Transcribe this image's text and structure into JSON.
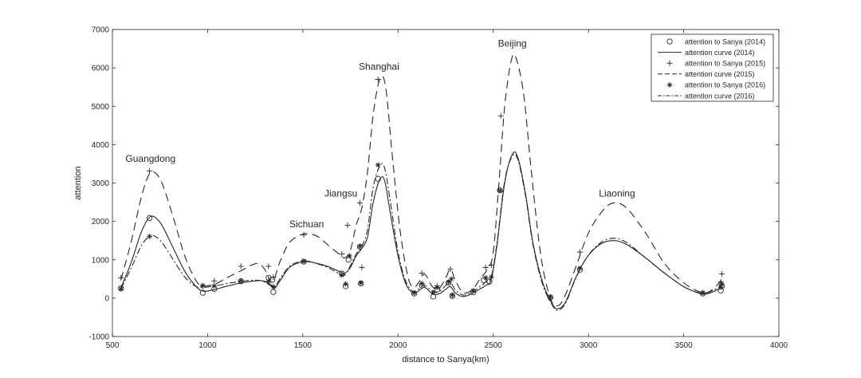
{
  "chart_data": {
    "type": "scatter",
    "title": "",
    "xlabel": "distance to Sanya(km)",
    "ylabel": "attention",
    "xlim": [
      500,
      4000
    ],
    "ylim": [
      -1000,
      7000
    ],
    "xticks": [
      500,
      1000,
      1500,
      2000,
      2500,
      3000,
      3500,
      4000
    ],
    "yticks": [
      -1000,
      0,
      1000,
      2000,
      3000,
      4000,
      5000,
      6000,
      7000
    ],
    "grid": false,
    "legend_position": "top-right",
    "colors": {
      "line": "#262626",
      "axis": "#262626",
      "background": "#ffffff"
    },
    "annotations": [
      {
        "text": "Guangdong",
        "x": 700,
        "y": 3550
      },
      {
        "text": "Sichuan",
        "x": 1520,
        "y": 1850
      },
      {
        "text": "Jiangsu",
        "x": 1700,
        "y": 2650
      },
      {
        "text": "Shanghai",
        "x": 1900,
        "y": 5950
      },
      {
        "text": "Beijing",
        "x": 2600,
        "y": 6550
      },
      {
        "text": "Liaoning",
        "x": 3150,
        "y": 2650
      }
    ],
    "series": [
      {
        "name": "attention to Sanya (2014)",
        "kind": "scatter",
        "marker": "circle",
        "points": [
          [
            545,
            260
          ],
          [
            695,
            2090
          ],
          [
            975,
            140
          ],
          [
            1035,
            240
          ],
          [
            1175,
            440
          ],
          [
            1320,
            530
          ],
          [
            1340,
            480
          ],
          [
            1345,
            160
          ],
          [
            1505,
            950
          ],
          [
            1705,
            640
          ],
          [
            1725,
            310
          ],
          [
            1740,
            1000
          ],
          [
            1800,
            1340
          ],
          [
            1805,
            380
          ],
          [
            1895,
            3110
          ],
          [
            2085,
            120
          ],
          [
            2125,
            330
          ],
          [
            2185,
            40
          ],
          [
            2205,
            220
          ],
          [
            2265,
            400
          ],
          [
            2285,
            60
          ],
          [
            2395,
            150
          ],
          [
            2450,
            470
          ],
          [
            2480,
            430
          ],
          [
            2535,
            2810
          ],
          [
            2800,
            20
          ],
          [
            2955,
            740
          ],
          [
            3600,
            120
          ],
          [
            3695,
            200
          ],
          [
            3700,
            310
          ]
        ]
      },
      {
        "name": "attention curve (2014)",
        "kind": "line",
        "dash": "",
        "points": [
          [
            545,
            270
          ],
          [
            600,
            950
          ],
          [
            650,
            1700
          ],
          [
            690,
            2080
          ],
          [
            720,
            2120
          ],
          [
            760,
            1900
          ],
          [
            820,
            1300
          ],
          [
            880,
            700
          ],
          [
            940,
            300
          ],
          [
            980,
            180
          ],
          [
            1040,
            230
          ],
          [
            1100,
            310
          ],
          [
            1180,
            400
          ],
          [
            1250,
            450
          ],
          [
            1290,
            450
          ],
          [
            1330,
            360
          ],
          [
            1350,
            250
          ],
          [
            1380,
            450
          ],
          [
            1430,
            800
          ],
          [
            1490,
            940
          ],
          [
            1530,
            950
          ],
          [
            1580,
            900
          ],
          [
            1640,
            810
          ],
          [
            1690,
            700
          ],
          [
            1720,
            650
          ],
          [
            1750,
            800
          ],
          [
            1780,
            1100
          ],
          [
            1810,
            1300
          ],
          [
            1840,
            1600
          ],
          [
            1870,
            2500
          ],
          [
            1905,
            3100
          ],
          [
            1930,
            3050
          ],
          [
            1960,
            2200
          ],
          [
            2000,
            1100
          ],
          [
            2040,
            380
          ],
          [
            2080,
            130
          ],
          [
            2110,
            200
          ],
          [
            2140,
            280
          ],
          [
            2180,
            120
          ],
          [
            2215,
            110
          ],
          [
            2250,
            230
          ],
          [
            2275,
            300
          ],
          [
            2300,
            140
          ],
          [
            2340,
            40
          ],
          [
            2390,
            120
          ],
          [
            2430,
            240
          ],
          [
            2460,
            330
          ],
          [
            2490,
            500
          ],
          [
            2520,
            1400
          ],
          [
            2560,
            3000
          ],
          [
            2600,
            3750
          ],
          [
            2630,
            3650
          ],
          [
            2670,
            2700
          ],
          [
            2710,
            1400
          ],
          [
            2760,
            400
          ],
          [
            2810,
            -150
          ],
          [
            2840,
            -280
          ],
          [
            2880,
            -100
          ],
          [
            2930,
            500
          ],
          [
            2990,
            1050
          ],
          [
            3060,
            1400
          ],
          [
            3130,
            1500
          ],
          [
            3200,
            1400
          ],
          [
            3300,
            1050
          ],
          [
            3400,
            650
          ],
          [
            3500,
            300
          ],
          [
            3580,
            130
          ],
          [
            3620,
            110
          ],
          [
            3660,
            180
          ],
          [
            3700,
            290
          ]
        ]
      },
      {
        "name": "attention to Sanya (2015)",
        "kind": "scatter",
        "marker": "plus",
        "points": [
          [
            545,
            530
          ],
          [
            695,
            3310
          ],
          [
            975,
            310
          ],
          [
            1035,
            450
          ],
          [
            1175,
            830
          ],
          [
            1320,
            830
          ],
          [
            1345,
            550
          ],
          [
            1505,
            1650
          ],
          [
            1705,
            1150
          ],
          [
            1735,
            1900
          ],
          [
            1800,
            2480
          ],
          [
            1810,
            800
          ],
          [
            1895,
            5700
          ],
          [
            2125,
            650
          ],
          [
            2205,
            320
          ],
          [
            2275,
            760
          ],
          [
            2460,
            800
          ],
          [
            2490,
            860
          ],
          [
            2540,
            4750
          ],
          [
            2955,
            1200
          ],
          [
            3700,
            630
          ],
          [
            3695,
            420
          ]
        ]
      },
      {
        "name": "attention curve (2015)",
        "kind": "line",
        "dash": "10,6",
        "points": [
          [
            545,
            480
          ],
          [
            600,
            1500
          ],
          [
            650,
            2600
          ],
          [
            690,
            3200
          ],
          [
            720,
            3280
          ],
          [
            760,
            3000
          ],
          [
            820,
            2100
          ],
          [
            880,
            1100
          ],
          [
            940,
            450
          ],
          [
            980,
            320
          ],
          [
            1040,
            370
          ],
          [
            1100,
            530
          ],
          [
            1170,
            700
          ],
          [
            1230,
            860
          ],
          [
            1270,
            900
          ],
          [
            1300,
            750
          ],
          [
            1340,
            420
          ],
          [
            1380,
            950
          ],
          [
            1430,
            1450
          ],
          [
            1490,
            1650
          ],
          [
            1530,
            1680
          ],
          [
            1580,
            1600
          ],
          [
            1640,
            1350
          ],
          [
            1690,
            1150
          ],
          [
            1720,
            1050
          ],
          [
            1750,
            1250
          ],
          [
            1780,
            1900
          ],
          [
            1810,
            2350
          ],
          [
            1840,
            3300
          ],
          [
            1870,
            4800
          ],
          [
            1905,
            5720
          ],
          [
            1935,
            5500
          ],
          [
            1970,
            3700
          ],
          [
            2010,
            1800
          ],
          [
            2050,
            600
          ],
          [
            2080,
            280
          ],
          [
            2110,
            420
          ],
          [
            2140,
            620
          ],
          [
            2180,
            300
          ],
          [
            2215,
            250
          ],
          [
            2250,
            520
          ],
          [
            2275,
            760
          ],
          [
            2300,
            480
          ],
          [
            2340,
            150
          ],
          [
            2390,
            220
          ],
          [
            2430,
            500
          ],
          [
            2470,
            760
          ],
          [
            2500,
            1200
          ],
          [
            2530,
            3000
          ],
          [
            2560,
            5000
          ],
          [
            2595,
            6200
          ],
          [
            2620,
            6250
          ],
          [
            2660,
            5300
          ],
          [
            2700,
            3300
          ],
          [
            2750,
            1100
          ],
          [
            2800,
            0
          ],
          [
            2840,
            -200
          ],
          [
            2880,
            100
          ],
          [
            2940,
            900
          ],
          [
            3000,
            1700
          ],
          [
            3070,
            2250
          ],
          [
            3130,
            2480
          ],
          [
            3200,
            2350
          ],
          [
            3300,
            1700
          ],
          [
            3400,
            900
          ],
          [
            3500,
            400
          ],
          [
            3580,
            170
          ],
          [
            3620,
            140
          ],
          [
            3660,
            260
          ],
          [
            3700,
            480
          ]
        ]
      },
      {
        "name": "attention to Sanya (2016)",
        "kind": "scatter",
        "marker": "star",
        "points": [
          [
            545,
            240
          ],
          [
            695,
            1610
          ],
          [
            975,
            330
          ],
          [
            1035,
            320
          ],
          [
            1175,
            450
          ],
          [
            1320,
            440
          ],
          [
            1345,
            300
          ],
          [
            1505,
            960
          ],
          [
            1705,
            600
          ],
          [
            1725,
            370
          ],
          [
            1745,
            1100
          ],
          [
            1800,
            1350
          ],
          [
            1805,
            400
          ],
          [
            1895,
            3470
          ],
          [
            2085,
            140
          ],
          [
            2125,
            380
          ],
          [
            2185,
            150
          ],
          [
            2205,
            280
          ],
          [
            2265,
            420
          ],
          [
            2280,
            500
          ],
          [
            2285,
            80
          ],
          [
            2395,
            200
          ],
          [
            2460,
            530
          ],
          [
            2490,
            550
          ],
          [
            2535,
            2800
          ],
          [
            2800,
            30
          ],
          [
            2955,
            780
          ],
          [
            3600,
            140
          ],
          [
            3700,
            370
          ],
          [
            3695,
            280
          ]
        ]
      },
      {
        "name": "attention curve (2016)",
        "kind": "line",
        "dash": "8,3,2,3",
        "points": [
          [
            545,
            250
          ],
          [
            600,
            800
          ],
          [
            650,
            1350
          ],
          [
            690,
            1600
          ],
          [
            720,
            1620
          ],
          [
            760,
            1450
          ],
          [
            820,
            1000
          ],
          [
            880,
            550
          ],
          [
            940,
            300
          ],
          [
            980,
            280
          ],
          [
            1040,
            320
          ],
          [
            1100,
            380
          ],
          [
            1180,
            440
          ],
          [
            1250,
            470
          ],
          [
            1290,
            440
          ],
          [
            1330,
            330
          ],
          [
            1350,
            280
          ],
          [
            1380,
            500
          ],
          [
            1430,
            830
          ],
          [
            1490,
            960
          ],
          [
            1530,
            960
          ],
          [
            1580,
            890
          ],
          [
            1640,
            780
          ],
          [
            1690,
            640
          ],
          [
            1720,
            600
          ],
          [
            1750,
            850
          ],
          [
            1780,
            1150
          ],
          [
            1810,
            1350
          ],
          [
            1840,
            1800
          ],
          [
            1870,
            2900
          ],
          [
            1905,
            3450
          ],
          [
            1930,
            3380
          ],
          [
            1960,
            2500
          ],
          [
            2000,
            1200
          ],
          [
            2040,
            450
          ],
          [
            2080,
            170
          ],
          [
            2110,
            250
          ],
          [
            2140,
            330
          ],
          [
            2180,
            190
          ],
          [
            2215,
            170
          ],
          [
            2250,
            330
          ],
          [
            2275,
            420
          ],
          [
            2300,
            220
          ],
          [
            2340,
            80
          ],
          [
            2390,
            160
          ],
          [
            2430,
            300
          ],
          [
            2460,
            420
          ],
          [
            2490,
            560
          ],
          [
            2520,
            1450
          ],
          [
            2560,
            3050
          ],
          [
            2600,
            3700
          ],
          [
            2630,
            3600
          ],
          [
            2670,
            2650
          ],
          [
            2710,
            1350
          ],
          [
            2760,
            350
          ],
          [
            2810,
            -180
          ],
          [
            2840,
            -320
          ],
          [
            2880,
            -130
          ],
          [
            2930,
            480
          ],
          [
            2990,
            1050
          ],
          [
            3060,
            1430
          ],
          [
            3130,
            1560
          ],
          [
            3200,
            1450
          ],
          [
            3300,
            1050
          ],
          [
            3400,
            650
          ],
          [
            3500,
            300
          ],
          [
            3580,
            140
          ],
          [
            3620,
            130
          ],
          [
            3660,
            220
          ],
          [
            3700,
            330
          ]
        ]
      }
    ]
  }
}
